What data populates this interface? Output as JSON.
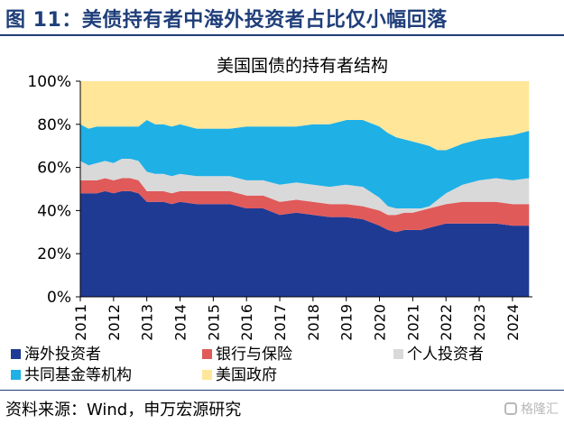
{
  "figure": {
    "title": "图 11：美债持有者中海外投资者占比仅小幅回落",
    "source": "资料来源：Wind，申万宏源研究",
    "watermark": "格隆汇"
  },
  "chart_data": {
    "type": "area",
    "stacked": true,
    "title": "美国国债的持有者结构",
    "xlabel": "",
    "ylabel": "",
    "ylim": [
      0,
      100
    ],
    "y_ticks": [
      0,
      20,
      40,
      60,
      80,
      100
    ],
    "y_tick_labels": [
      "0%",
      "20%",
      "40%",
      "60%",
      "80%",
      "100%"
    ],
    "x_range": [
      2011,
      2024.6
    ],
    "x_ticks": [
      2011,
      2012,
      2013,
      2014,
      2015,
      2016,
      2017,
      2018,
      2019,
      2020,
      2021,
      2022,
      2023,
      2024
    ],
    "x_tick_labels": [
      "2011",
      "2012",
      "2013",
      "2014",
      "2015",
      "2016",
      "2017",
      "2018",
      "2019",
      "2020",
      "2021",
      "2022",
      "2023",
      "2024"
    ],
    "x": [
      2011,
      2011.25,
      2011.5,
      2011.75,
      2012,
      2012.25,
      2012.5,
      2012.75,
      2013,
      2013.25,
      2013.5,
      2013.75,
      2014,
      2014.5,
      2015,
      2015.5,
      2016,
      2016.5,
      2017,
      2017.5,
      2018,
      2018.5,
      2019,
      2019.5,
      2020,
      2020.25,
      2020.5,
      2020.75,
      2021,
      2021.25,
      2021.5,
      2021.75,
      2022,
      2022.5,
      2023,
      2023.5,
      2024,
      2024.5
    ],
    "series": [
      {
        "name": "海外投资者",
        "color": "#1f3a93",
        "values": [
          48,
          48,
          48,
          49,
          48,
          49,
          49,
          48,
          44,
          44,
          44,
          43,
          44,
          43,
          43,
          43,
          41,
          41,
          38,
          39,
          38,
          37,
          37,
          36,
          33,
          31,
          30,
          31,
          31,
          31,
          32,
          33,
          34,
          34,
          34,
          34,
          33,
          33
        ]
      },
      {
        "name": "银行与保险",
        "color": "#e05a5a",
        "values": [
          6,
          6,
          6,
          6,
          6,
          6,
          6,
          6,
          5,
          5,
          5,
          5,
          5,
          6,
          6,
          6,
          6,
          6,
          6,
          6,
          6,
          6,
          6,
          6,
          7,
          7,
          8,
          8,
          8,
          9,
          9,
          9,
          9,
          10,
          10,
          10,
          10,
          10
        ]
      },
      {
        "name": "个人投资者",
        "color": "#d9d9d9",
        "values": [
          9,
          7,
          8,
          8,
          8,
          9,
          9,
          9,
          9,
          8,
          8,
          8,
          8,
          7,
          7,
          7,
          7,
          7,
          8,
          8,
          8,
          8,
          9,
          9,
          6,
          4,
          3,
          2,
          2,
          1,
          1,
          3,
          5,
          8,
          10,
          11,
          11,
          12
        ]
      },
      {
        "name": "共同基金等机构",
        "color": "#1fb0e6",
        "values": [
          17,
          17,
          17,
          16,
          17,
          15,
          15,
          16,
          24,
          23,
          23,
          23,
          23,
          22,
          22,
          22,
          25,
          25,
          27,
          26,
          28,
          29,
          30,
          31,
          33,
          34,
          33,
          32,
          31,
          30,
          28,
          23,
          20,
          19,
          19,
          19,
          21,
          22
        ]
      },
      {
        "name": "美国政府",
        "color": "#ffe699",
        "values": [
          20,
          22,
          21,
          21,
          21,
          21,
          21,
          21,
          18,
          20,
          20,
          21,
          20,
          22,
          22,
          22,
          21,
          21,
          21,
          21,
          20,
          20,
          18,
          18,
          21,
          24,
          26,
          27,
          28,
          29,
          30,
          32,
          32,
          29,
          27,
          26,
          25,
          23
        ]
      }
    ],
    "legend_position": "bottom"
  }
}
